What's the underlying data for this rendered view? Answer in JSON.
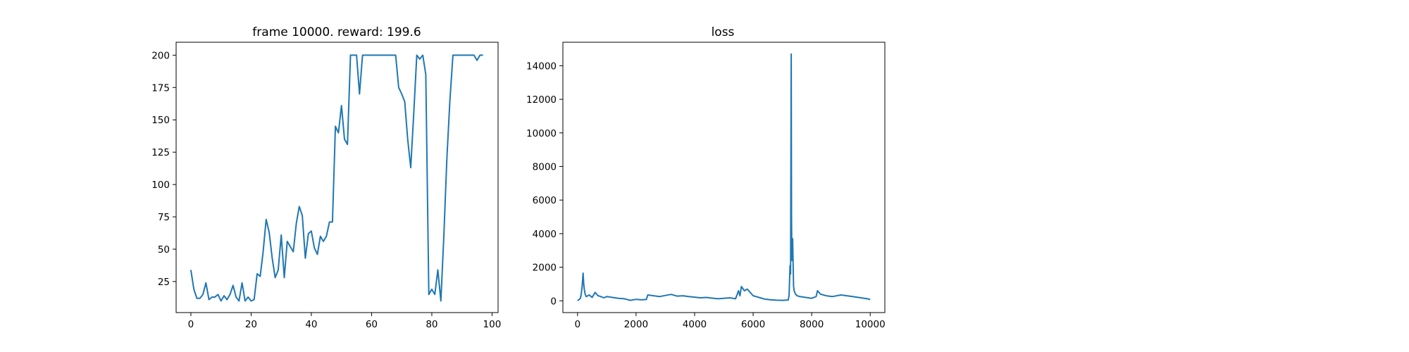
{
  "chart_data": [
    {
      "type": "line",
      "title": "frame 10000. reward: 199.6",
      "xlabel": "",
      "ylabel": "",
      "xlim": [
        -4.9,
        102.0
      ],
      "ylim": [
        1.0,
        210.0
      ],
      "xticks": [
        0,
        20,
        40,
        60,
        80,
        100
      ],
      "yticks": [
        25,
        50,
        75,
        100,
        125,
        150,
        175,
        200
      ],
      "grid": false,
      "color": "#1f77b4",
      "series": [
        {
          "x": [
            0,
            1,
            2,
            3,
            4,
            5,
            6,
            7,
            8,
            9,
            10,
            11,
            12,
            13,
            14,
            15,
            16,
            17,
            18,
            19,
            20,
            21,
            22,
            23,
            24,
            25,
            26,
            27,
            28,
            29,
            30,
            31,
            32,
            33,
            34,
            35,
            36,
            37,
            38,
            39,
            40,
            41,
            42,
            43,
            44,
            45,
            46,
            47,
            48,
            49,
            50,
            51,
            52,
            53,
            54,
            55,
            56,
            57,
            58,
            59,
            60,
            61,
            62,
            63,
            64,
            65,
            66,
            67,
            68,
            69,
            70,
            71,
            72,
            73,
            74,
            75,
            76,
            77,
            78,
            79,
            80,
            81,
            82,
            83,
            84,
            85,
            86,
            87,
            88,
            89,
            90,
            91,
            92,
            93,
            94,
            95,
            96,
            97
          ],
          "values": [
            34,
            19,
            12,
            12,
            15,
            24,
            11,
            13,
            13,
            15,
            10,
            14,
            11,
            15,
            22,
            13,
            10,
            24,
            10,
            13,
            10,
            11,
            31,
            29,
            48,
            73,
            63,
            43,
            28,
            34,
            61,
            28,
            56,
            52,
            48,
            70,
            83,
            76,
            43,
            62,
            64,
            51,
            46,
            60,
            56,
            60,
            71,
            71,
            145,
            140,
            161,
            135,
            131,
            200,
            200,
            200,
            170,
            200,
            200,
            200,
            200,
            200,
            200,
            200,
            200,
            200,
            200,
            200,
            200,
            175,
            170,
            164,
            135,
            113,
            155,
            200,
            197,
            200,
            185,
            15,
            19,
            15,
            34,
            10,
            60,
            120,
            165,
            200,
            200,
            200,
            200,
            200,
            200,
            200,
            200,
            196,
            200,
            200
          ]
        }
      ]
    },
    {
      "type": "line",
      "title": "loss",
      "xlabel": "",
      "ylabel": "",
      "xlim": [
        -500,
        10500
      ],
      "ylim": [
        -700,
        15400
      ],
      "xticks": [
        0,
        2000,
        4000,
        6000,
        8000,
        10000
      ],
      "yticks": [
        0,
        2000,
        4000,
        6000,
        8000,
        10000,
        12000,
        14000
      ],
      "grid": false,
      "color": "#1f77b4",
      "series": [
        {
          "x": [
            0,
            100,
            130,
            160,
            190,
            210,
            230,
            260,
            300,
            400,
            500,
            600,
            700,
            800,
            900,
            1000,
            1200,
            1400,
            1600,
            1800,
            2000,
            2200,
            2350,
            2400,
            2600,
            2800,
            3000,
            3200,
            3400,
            3600,
            3800,
            4000,
            4200,
            4400,
            4600,
            4800,
            5000,
            5200,
            5400,
            5500,
            5550,
            5600,
            5700,
            5800,
            5900,
            6000,
            6200,
            6400,
            6600,
            6800,
            7000,
            7200,
            7230,
            7260,
            7280,
            7300,
            7310,
            7320,
            7330,
            7350,
            7380,
            7400,
            7450,
            7500,
            7600,
            7800,
            8000,
            8150,
            8200,
            8300,
            8500,
            8700,
            9000,
            9200,
            9400,
            9600,
            9800,
            9900,
            10000
          ],
          "values": [
            0,
            150,
            450,
            900,
            1650,
            1050,
            700,
            400,
            250,
            350,
            200,
            500,
            300,
            250,
            180,
            250,
            200,
            150,
            120,
            30,
            90,
            60,
            80,
            350,
            300,
            250,
            320,
            380,
            280,
            300,
            250,
            220,
            180,
            200,
            160,
            120,
            150,
            180,
            120,
            600,
            300,
            850,
            600,
            700,
            500,
            300,
            200,
            100,
            60,
            40,
            30,
            50,
            350,
            2100,
            1600,
            14700,
            5100,
            3000,
            2400,
            3700,
            900,
            600,
            400,
            300,
            250,
            200,
            150,
            250,
            600,
            400,
            300,
            250,
            350,
            300,
            250,
            200,
            150,
            120,
            80
          ]
        }
      ]
    }
  ]
}
